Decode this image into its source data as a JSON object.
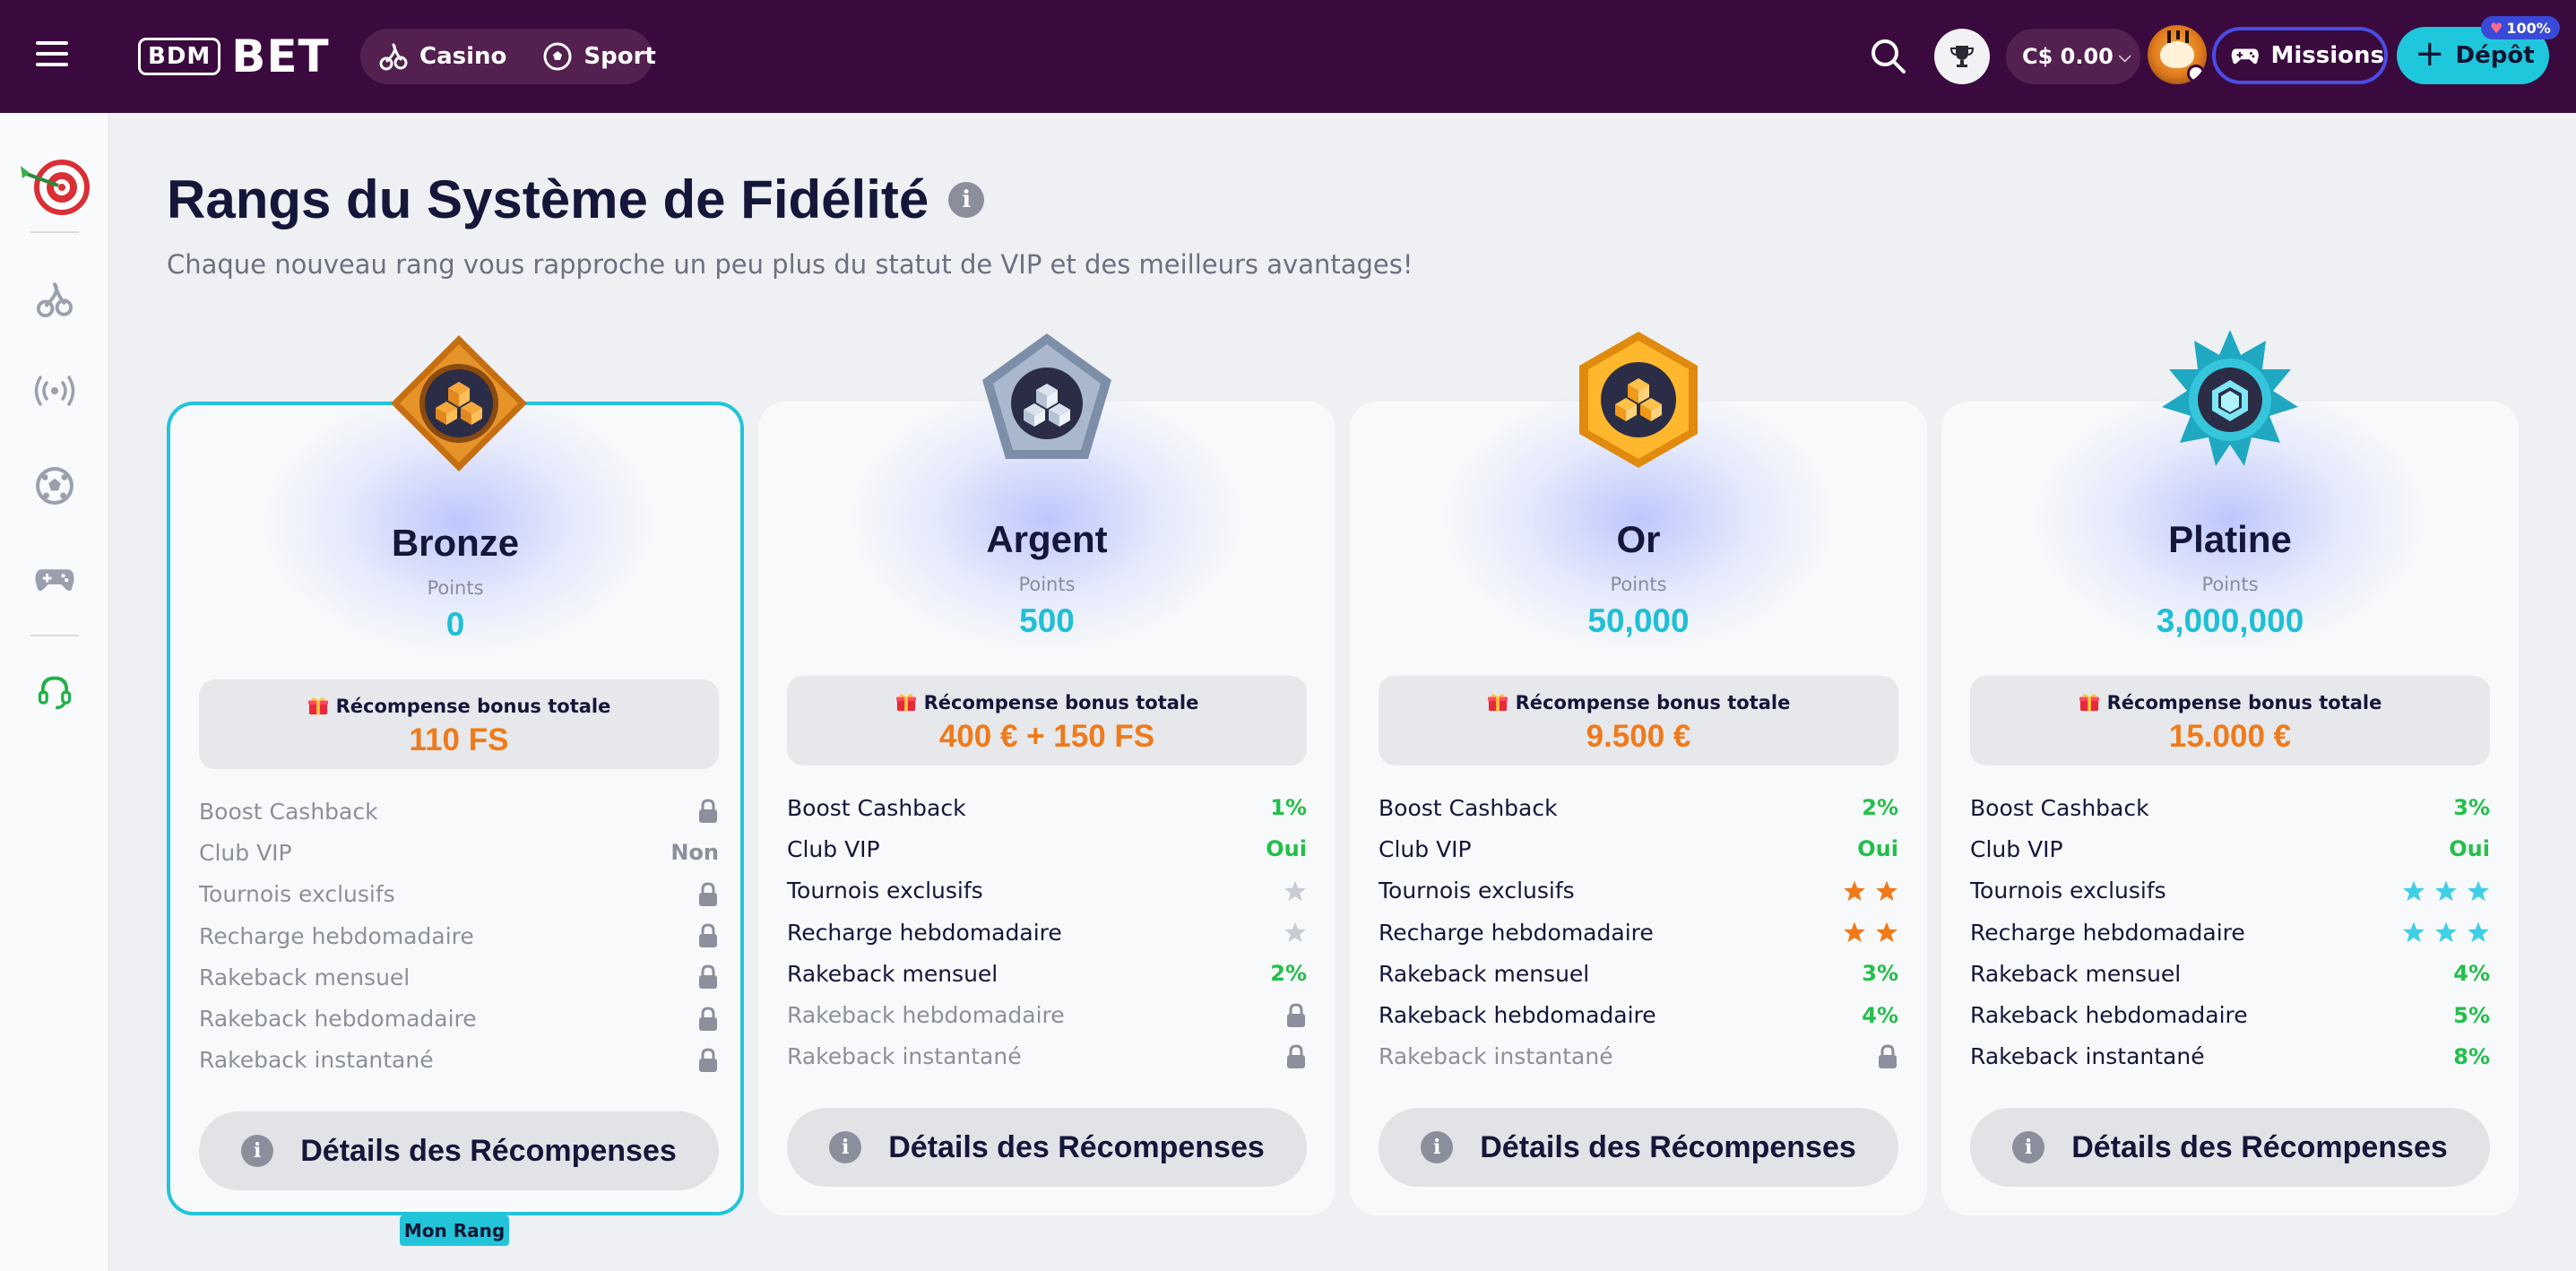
{
  "header": {
    "logo_box": "BDM",
    "logo_text": "BET",
    "nav": {
      "casino": "Casino",
      "sport": "Sport"
    },
    "balance": "C$ 0.00",
    "missions": "Missions",
    "deposit": "Dépôt",
    "deposit_badge": "100%",
    "icons": [
      "menu-icon",
      "cherry-icon",
      "soccer-ball-icon",
      "search-icon",
      "trophy-icon",
      "gamepad-icon",
      "plus-icon"
    ]
  },
  "sidebar": {
    "items": [
      "darts-target-icon",
      "cherry-icon",
      "live-broadcast-icon",
      "soccer-ball-icon",
      "gamepad-icon",
      "headset-icon"
    ]
  },
  "page": {
    "title": "Rangs du Système de Fidélité",
    "subtitle": "Chaque nouveau rang vous rapproche un peu plus du statut de VIP et des meilleurs avantages!",
    "points_label": "Points",
    "bonus_label": "Récompense bonus totale",
    "details_label": "Détails des Récompenses",
    "current_rank_badge": "Mon Rang"
  },
  "colors": {
    "accent": "#1ec7dc",
    "header_bg": "#3a0a3e",
    "orange": "#f07a1a",
    "green": "#22c04a"
  },
  "ranks": [
    {
      "name": "Bronze",
      "points": "0",
      "bonus": "110 FS",
      "current": true,
      "perks": [
        {
          "label": "Boost Cashback",
          "value": "",
          "locked": true,
          "icon": "lock-icon"
        },
        {
          "label": "Club VIP",
          "value": "Non",
          "locked": true
        },
        {
          "label": "Tournois exclusifs",
          "value": "",
          "locked": true,
          "icon": "lock-icon"
        },
        {
          "label": "Recharge hebdomadaire",
          "value": "",
          "locked": true,
          "icon": "lock-icon"
        },
        {
          "label": "Rakeback mensuel",
          "value": "",
          "locked": true,
          "icon": "lock-icon"
        },
        {
          "label": "Rakeback hebdomadaire",
          "value": "",
          "locked": true,
          "icon": "lock-icon"
        },
        {
          "label": "Rakeback instantané",
          "value": "",
          "locked": true,
          "icon": "lock-icon"
        }
      ]
    },
    {
      "name": "Argent",
      "points": "500",
      "bonus": "400 € + 150 FS",
      "current": false,
      "perks": [
        {
          "label": "Boost Cashback",
          "value": "1%",
          "locked": false
        },
        {
          "label": "Club VIP",
          "value": "Oui",
          "locked": false
        },
        {
          "label": "Tournois exclusifs",
          "value": "",
          "locked": false,
          "stars": 1,
          "star_color": "#c7ccd6"
        },
        {
          "label": "Recharge hebdomadaire",
          "value": "",
          "locked": false,
          "stars": 1,
          "star_color": "#c7ccd6"
        },
        {
          "label": "Rakeback mensuel",
          "value": "2%",
          "locked": false
        },
        {
          "label": "Rakeback hebdomadaire",
          "value": "",
          "locked": true,
          "icon": "lock-icon"
        },
        {
          "label": "Rakeback instantané",
          "value": "",
          "locked": true,
          "icon": "lock-icon"
        }
      ]
    },
    {
      "name": "Or",
      "points": "50,000",
      "bonus": "9.500 €",
      "current": false,
      "perks": [
        {
          "label": "Boost Cashback",
          "value": "2%",
          "locked": false
        },
        {
          "label": "Club VIP",
          "value": "Oui",
          "locked": false
        },
        {
          "label": "Tournois exclusifs",
          "value": "",
          "locked": false,
          "stars": 2,
          "star_color": "#f07a1a"
        },
        {
          "label": "Recharge hebdomadaire",
          "value": "",
          "locked": false,
          "stars": 2,
          "star_color": "#f07a1a"
        },
        {
          "label": "Rakeback mensuel",
          "value": "3%",
          "locked": false
        },
        {
          "label": "Rakeback hebdomadaire",
          "value": "4%",
          "locked": false
        },
        {
          "label": "Rakeback instantané",
          "value": "",
          "locked": true,
          "icon": "lock-icon"
        }
      ]
    },
    {
      "name": "Platine",
      "points": "3,000,000",
      "bonus": "15.000 €",
      "current": false,
      "perks": [
        {
          "label": "Boost Cashback",
          "value": "3%",
          "locked": false
        },
        {
          "label": "Club VIP",
          "value": "Oui",
          "locked": false
        },
        {
          "label": "Tournois exclusifs",
          "value": "",
          "locked": false,
          "stars": 3,
          "star_color": "#3fd0e6"
        },
        {
          "label": "Recharge hebdomadaire",
          "value": "",
          "locked": false,
          "stars": 3,
          "star_color": "#3fd0e6"
        },
        {
          "label": "Rakeback mensuel",
          "value": "4%",
          "locked": false
        },
        {
          "label": "Rakeback hebdomadaire",
          "value": "5%",
          "locked": false
        },
        {
          "label": "Rakeback instantané",
          "value": "8%",
          "locked": false
        }
      ]
    }
  ]
}
